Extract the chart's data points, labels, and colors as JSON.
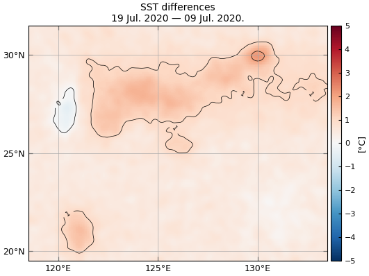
{
  "title_line1": "SST differences",
  "title_line2": "19 Jul. 2020 — 09 Jul. 2020.",
  "lon_min": 118.5,
  "lon_max": 133.5,
  "lat_min": 19.5,
  "lat_max": 31.5,
  "lon_ticks": [
    120,
    125,
    130
  ],
  "lat_ticks": [
    20,
    25,
    30
  ],
  "cbar_label": "[°C]",
  "vmin": -5,
  "vmax": 5,
  "cmap": "RdBu_r",
  "grid_color": "#aaaaaa",
  "land_color": "#666666",
  "figsize": [
    5.31,
    3.98
  ],
  "dpi": 100
}
